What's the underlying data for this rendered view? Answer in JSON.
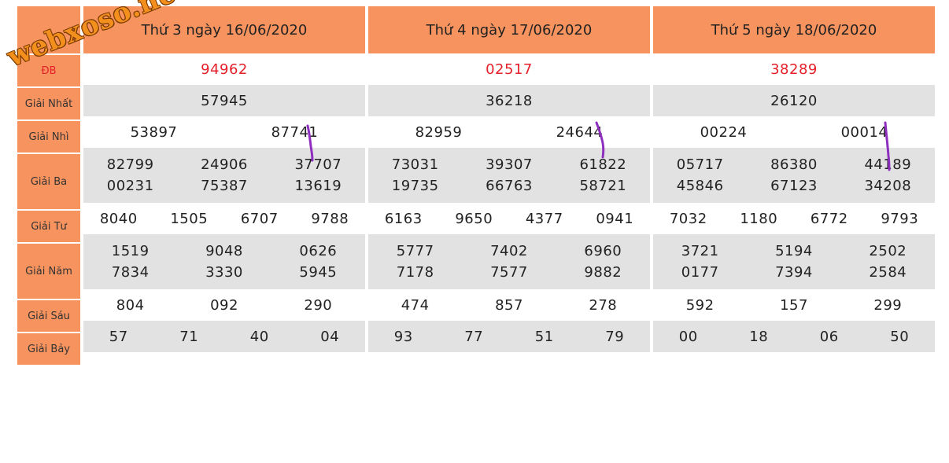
{
  "labels": {
    "db": "ĐB",
    "nhat": "Giải Nhất",
    "nhi": "Giải Nhì",
    "ba": "Giải Ba",
    "tu": "Giải Tư",
    "nam": "Giải Năm",
    "sau": "Giải Sáu",
    "bay": "Giải Bảy"
  },
  "days": [
    {
      "title": "Thứ 3 ngày 16/06/2020",
      "db": "94962",
      "nhat": "57945",
      "nhi": [
        "53897",
        "87741"
      ],
      "ba": [
        "82799",
        "24906",
        "37707",
        "00231",
        "75387",
        "13619"
      ],
      "tu": [
        "8040",
        "1505",
        "6707",
        "9788"
      ],
      "nam": [
        "1519",
        "9048",
        "0626",
        "7834",
        "3330",
        "5945"
      ],
      "sau": [
        "804",
        "092",
        "290"
      ],
      "bay": [
        "57",
        "71",
        "40",
        "04"
      ]
    },
    {
      "title": "Thứ 4 ngày 17/06/2020",
      "db": "02517",
      "nhat": "36218",
      "nhi": [
        "82959",
        "24644"
      ],
      "ba": [
        "73031",
        "39307",
        "61822",
        "19735",
        "66763",
        "58721"
      ],
      "tu": [
        "6163",
        "9650",
        "4377",
        "0941"
      ],
      "nam": [
        "5777",
        "7402",
        "6960",
        "7178",
        "7577",
        "9882"
      ],
      "sau": [
        "474",
        "857",
        "278"
      ],
      "bay": [
        "93",
        "77",
        "51",
        "79"
      ]
    },
    {
      "title": "Thứ 5 ngày 18/06/2020",
      "db": "38289",
      "nhat": "26120",
      "nhi": [
        "00224",
        "00014"
      ],
      "ba": [
        "05717",
        "86380",
        "44189",
        "45846",
        "67123",
        "34208"
      ],
      "tu": [
        "7032",
        "1180",
        "6772",
        "9793"
      ],
      "nam": [
        "3721",
        "5194",
        "2502",
        "0177",
        "7394",
        "2584"
      ],
      "sau": [
        "592",
        "157",
        "299"
      ],
      "bay": [
        "00",
        "18",
        "06",
        "50"
      ]
    }
  ],
  "watermark": "webxoso.net",
  "colors": {
    "header": "#f7935e",
    "special": "#e5202a",
    "stripe": "#e2e2e2",
    "mark": "#8e2fc0"
  }
}
